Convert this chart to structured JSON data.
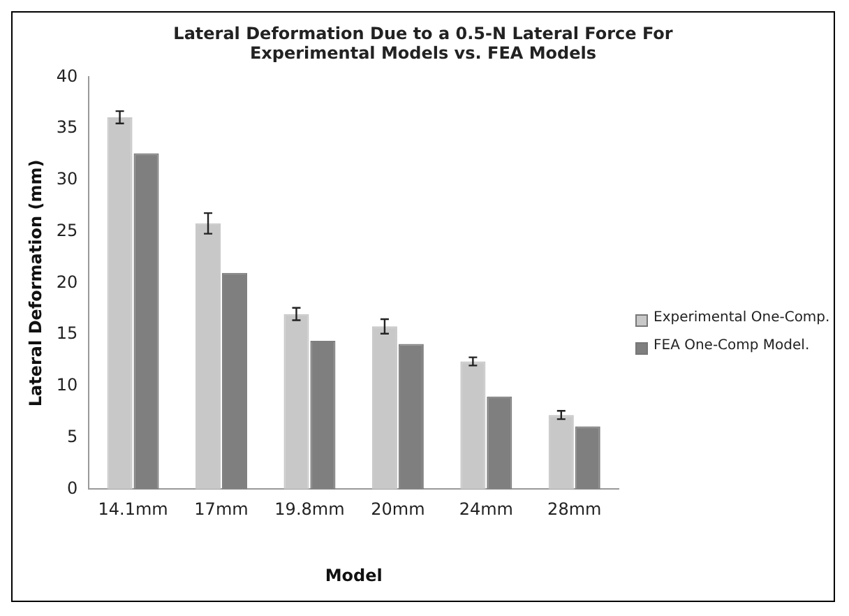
{
  "chart_data": {
    "type": "bar",
    "title": "Lateral Deformation Due to a 0.5-N Lateral Force For Experimental Models vs. FEA Models",
    "xlabel": "Model",
    "ylabel": "Lateral Deformation (mm)",
    "categories": [
      "14.1mm",
      "17mm",
      "19.8mm",
      "20mm",
      "24mm",
      "28mm"
    ],
    "series": [
      {
        "name": "Experimental One-Comp.",
        "color": "#c8c8c8",
        "values": [
          36.1,
          25.8,
          17.0,
          15.8,
          12.4,
          7.2
        ],
        "errors": [
          0.6,
          1.0,
          0.6,
          0.7,
          0.4,
          0.4
        ]
      },
      {
        "name": "FEA One-Comp Model.",
        "color": "#7f7f7f",
        "values": [
          32.6,
          21.0,
          14.4,
          14.1,
          9.0,
          6.1
        ]
      }
    ],
    "ylim": [
      0,
      40
    ],
    "yticks": [
      0,
      5,
      10,
      15,
      20,
      25,
      30,
      35,
      40
    ],
    "grid": false,
    "legend": "right"
  }
}
